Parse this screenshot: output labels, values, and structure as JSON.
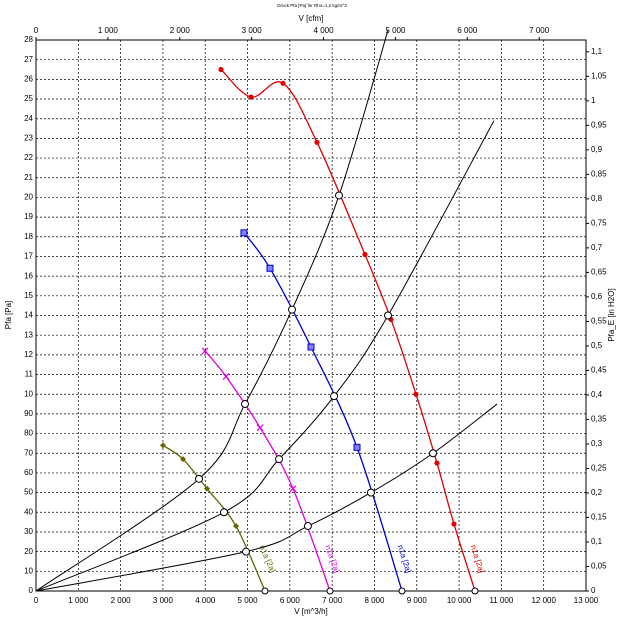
{
  "chart_data": {
    "type": "line",
    "title": "Druck Pfa [Pa] für Rho=1,2 kg/m^3",
    "xlabel": "V [m^3/h]",
    "x2label": "V [cfm]",
    "ylabel": "Pfa [Pa]",
    "y2label": "Pfa_E [in H2O]",
    "grid": true,
    "xlim": [
      0,
      13000
    ],
    "xticks": [
      0,
      {
        "value": 1000,
        "label": "1 000"
      },
      {
        "value": 2000,
        "label": "2 000"
      },
      {
        "value": 3000,
        "label": "3 000"
      },
      {
        "value": 4000,
        "label": "4 000"
      },
      {
        "value": 5000,
        "label": "5 000"
      },
      {
        "value": 6000,
        "label": "6 000"
      },
      {
        "value": 7000,
        "label": "7 000"
      },
      {
        "value": 8000,
        "label": "8 000"
      },
      {
        "value": 9000,
        "label": "9 000"
      },
      {
        "value": 10000,
        "label": "10 000"
      },
      {
        "value": 11000,
        "label": "11 000"
      },
      {
        "value": 12000,
        "label": "12 000"
      },
      {
        "value": 13000,
        "label": "13 000"
      }
    ],
    "x2lim": [
      0,
      7651
    ],
    "x2ticks": [
      0,
      {
        "value": 1000,
        "label": "1 000"
      },
      {
        "value": 2000,
        "label": "2 000"
      },
      {
        "value": 3000,
        "label": "3 000"
      },
      {
        "value": 4000,
        "label": "4 000"
      },
      {
        "value": 5000,
        "label": "5 000"
      },
      {
        "value": 6000,
        "label": "6 000"
      },
      {
        "value": 7000,
        "label": "7 000"
      }
    ],
    "ylim": [
      0,
      280
    ],
    "yticks": [
      0,
      10,
      20,
      30,
      40,
      50,
      60,
      70,
      80,
      90,
      {
        "value": 100,
        "label": "10"
      },
      {
        "value": 110,
        "label": "11"
      },
      {
        "value": 120,
        "label": "12"
      },
      {
        "value": 130,
        "label": "13"
      },
      {
        "value": 140,
        "label": "14"
      },
      {
        "value": 150,
        "label": "15"
      },
      {
        "value": 160,
        "label": "16"
      },
      {
        "value": 170,
        "label": "17"
      },
      {
        "value": 180,
        "label": "18"
      },
      {
        "value": 190,
        "label": "19"
      },
      {
        "value": 200,
        "label": "20"
      },
      {
        "value": 210,
        "label": "21"
      },
      {
        "value": 220,
        "label": "22"
      },
      {
        "value": 230,
        "label": "23"
      },
      {
        "value": 240,
        "label": "24"
      },
      {
        "value": 250,
        "label": "25"
      },
      {
        "value": 260,
        "label": "26"
      },
      {
        "value": 270,
        "label": "27"
      },
      {
        "value": 280,
        "label": "28"
      }
    ],
    "y2lim": [
      0,
      1.1241
    ],
    "y2ticks": [
      0,
      {
        "value": 0.05,
        "label": "0,05"
      },
      {
        "value": 0.1,
        "label": "0,1"
      },
      {
        "value": 0.15,
        "label": "0,15"
      },
      {
        "value": 0.2,
        "label": "0,2"
      },
      {
        "value": 0.25,
        "label": "0,25"
      },
      {
        "value": 0.3,
        "label": "0,3"
      },
      {
        "value": 0.35,
        "label": "0,35"
      },
      {
        "value": 0.4,
        "label": "0,4"
      },
      {
        "value": 0.45,
        "label": "0,45"
      },
      {
        "value": 0.5,
        "label": "0,5"
      },
      {
        "value": 0.55,
        "label": "0,55"
      },
      {
        "value": 0.6,
        "label": "0,6"
      },
      {
        "value": 0.65,
        "label": "0,65"
      },
      {
        "value": 0.7,
        "label": "0,7"
      },
      {
        "value": 0.75,
        "label": "0,75"
      },
      {
        "value": 0.8,
        "label": "0,8"
      },
      {
        "value": 0.85,
        "label": "0,85"
      },
      {
        "value": 0.9,
        "label": "0,9"
      },
      {
        "value": 0.95,
        "label": "0,95"
      },
      {
        "value": 1,
        "label": "1"
      },
      {
        "value": 1.05,
        "label": "1,05"
      },
      {
        "value": 1.1,
        "label": "1,1"
      }
    ],
    "series": [
      {
        "name": "n1a [2a]",
        "color": "#e00000",
        "marker": "circle",
        "x": [
          4373,
          5082,
          5838,
          6642,
          7776,
          8391,
          8982,
          9478,
          9880,
          10376
        ],
        "values": [
          265,
          251,
          258,
          228,
          171,
          138,
          100,
          65,
          34,
          0
        ]
      },
      {
        "name": "n1a [2a]",
        "color": "#0000cc",
        "marker": "square",
        "x": [
          4916,
          5531,
          6500,
          7587,
          8651
        ],
        "values": [
          182,
          164,
          124,
          73,
          0
        ]
      },
      {
        "name": "n1a [2a]",
        "color": "#e000e0",
        "marker": "cross",
        "x": [
          3995,
          4491,
          5295,
          6075,
          6949
        ],
        "values": [
          122,
          109,
          83,
          52,
          0
        ]
      },
      {
        "name": "n1a [2a]",
        "color": "#666600",
        "marker": "diamond",
        "x": [
          3002,
          3475,
          4042,
          4727,
          5413
        ],
        "values": [
          74,
          67,
          52,
          33,
          0
        ]
      },
      {
        "color": "#000000",
        "x": [
          0,
          3853,
          4940,
          6051,
          7162,
          8320
        ],
        "values": [
          0,
          57,
          95,
          143,
          201,
          285
        ]
      },
      {
        "color": "#000000",
        "x": [
          0,
          4444,
          5744,
          7045,
          8320,
          10825
        ],
        "values": [
          0,
          40,
          67,
          99,
          140,
          239
        ]
      },
      {
        "color": "#000000",
        "x": [
          0,
          4963,
          6428,
          7917,
          9384,
          10898
        ],
        "values": [
          0,
          20,
          33,
          50,
          70,
          95
        ]
      }
    ],
    "operating_points": {
      "x": [
        3853,
        4940,
        6051,
        7162,
        4444,
        5744,
        7045,
        8320,
        4963,
        6428,
        7917,
        9384
      ],
      "values": [
        57,
        95,
        143,
        201,
        40,
        67,
        99,
        140,
        20,
        33,
        50,
        70
      ]
    }
  }
}
